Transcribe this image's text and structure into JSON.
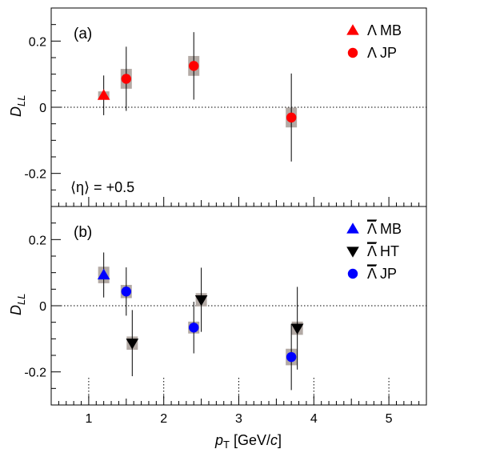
{
  "chart_data": [
    {
      "type": "scatter",
      "panel_label": "(a)",
      "ylabel": "D",
      "ylabel_sub": "LL",
      "ylim": [
        -0.3,
        0.3
      ],
      "yticks": [
        -0.2,
        0,
        0.2
      ],
      "ytick_labels": [
        "-0.2",
        "0",
        "0.2"
      ],
      "xlim": [
        0.5,
        5.5
      ],
      "zero_line": true,
      "annotation": "⟨η⟩ = +0.5",
      "legend_position": "top-right",
      "series": [
        {
          "name": "Λ MB",
          "marker": "triangle-up",
          "color": "#ff0000",
          "points": [
            {
              "x": 1.2,
              "y": 0.036,
              "err": 0.06,
              "sys": 0.012
            }
          ]
        },
        {
          "name": "Λ JP",
          "marker": "circle",
          "color": "#ff0000",
          "points": [
            {
              "x": 1.5,
              "y": 0.086,
              "err": 0.097,
              "sys": 0.03
            },
            {
              "x": 2.4,
              "y": 0.125,
              "err": 0.102,
              "sys": 0.03
            },
            {
              "x": 3.7,
              "y": -0.031,
              "err": 0.133,
              "sys": 0.03
            }
          ]
        }
      ]
    },
    {
      "type": "scatter",
      "panel_label": "(b)",
      "ylabel": "D",
      "ylabel_sub": "LL",
      "xlabel": "p",
      "xlabel_sub": "T",
      "xlabel_unit": " [GeV/",
      "xlabel_unit_italic": "c",
      "xlabel_unit_close": "]",
      "ylim": [
        -0.3,
        0.3
      ],
      "yticks": [
        -0.2,
        0,
        0.2
      ],
      "ytick_labels": [
        "-0.2",
        "0",
        "0.2"
      ],
      "xlim": [
        0.5,
        5.5
      ],
      "xticks": [
        1,
        2,
        3,
        4,
        5
      ],
      "xtick_labels": [
        "1",
        "2",
        "3",
        "4",
        "5"
      ],
      "zero_line": true,
      "legend_position": "top-right",
      "series": [
        {
          "name": "Λ MB",
          "marker": "triangle-up",
          "color": "#0000ff",
          "points": [
            {
              "x": 1.2,
              "y": 0.093,
              "err": 0.068,
              "sys": 0.025
            }
          ]
        },
        {
          "name": "Λ HT",
          "marker": "triangle-down",
          "color": "#000000",
          "points": [
            {
              "x": 1.58,
              "y": -0.113,
              "err": 0.1,
              "sys": 0.02
            },
            {
              "x": 2.5,
              "y": 0.018,
              "err": 0.097,
              "sys": 0.02
            },
            {
              "x": 3.78,
              "y": -0.068,
              "err": 0.125,
              "sys": 0.02
            }
          ]
        },
        {
          "name": "Λ JP",
          "marker": "circle",
          "color": "#0000ff",
          "points": [
            {
              "x": 1.5,
              "y": 0.043,
              "err": 0.073,
              "sys": 0.02
            },
            {
              "x": 2.4,
              "y": -0.066,
              "err": 0.078,
              "sys": 0.018
            },
            {
              "x": 3.7,
              "y": -0.155,
              "err": 0.1,
              "sys": 0.025
            }
          ]
        }
      ]
    }
  ]
}
